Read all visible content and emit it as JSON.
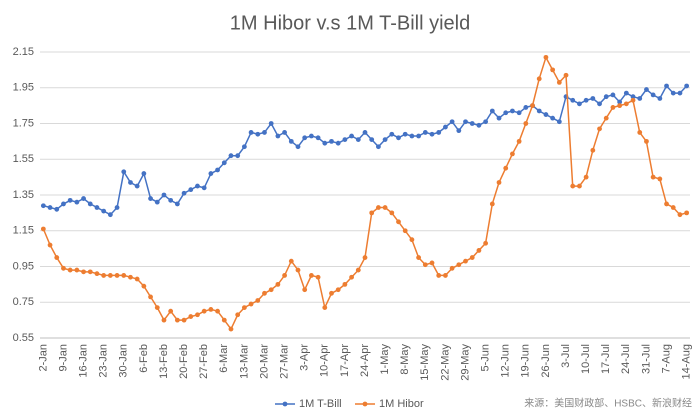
{
  "chart_data": {
    "type": "line",
    "title": "1M Hibor v.s 1M T-Bill yield",
    "source": "来源：美国财政部、HSBC、新浪财经",
    "categories": [
      "2-Jan",
      null,
      null,
      "9-Jan",
      null,
      null,
      "16-Jan",
      null,
      null,
      "23-Jan",
      null,
      null,
      "30-Jan",
      null,
      null,
      "6-Feb",
      null,
      null,
      "13-Feb",
      null,
      null,
      "20-Feb",
      null,
      null,
      "27-Feb",
      null,
      null,
      "6-Mar",
      null,
      null,
      "13-Mar",
      null,
      null,
      "20-Mar",
      null,
      null,
      "27-Mar",
      null,
      null,
      "3-Apr",
      null,
      null,
      "10-Apr",
      null,
      null,
      "17-Apr",
      null,
      null,
      "24-Apr",
      null,
      null,
      "1-May",
      null,
      null,
      "8-May",
      null,
      null,
      "15-May",
      null,
      null,
      "22-May",
      null,
      null,
      "29-May",
      null,
      null,
      "5-Jun",
      null,
      null,
      "12-Jun",
      null,
      null,
      "19-Jun",
      null,
      null,
      "26-Jun",
      null,
      null,
      "3-Jul",
      null,
      null,
      "10-Jul",
      null,
      null,
      "17-Jul",
      null,
      null,
      "24-Jul",
      null,
      null,
      "31-Jul",
      null,
      null,
      "7-Aug",
      null,
      null,
      "14-Aug"
    ],
    "series": [
      {
        "name": "1M T-Bill",
        "color": "#4472c4",
        "values": [
          1.29,
          1.28,
          1.27,
          1.3,
          1.32,
          1.31,
          1.33,
          1.3,
          1.28,
          1.26,
          1.24,
          1.28,
          1.48,
          1.42,
          1.4,
          1.47,
          1.33,
          1.31,
          1.35,
          1.32,
          1.3,
          1.36,
          1.38,
          1.4,
          1.39,
          1.47,
          1.49,
          1.53,
          1.57,
          1.57,
          1.62,
          1.7,
          1.69,
          1.7,
          1.75,
          1.68,
          1.7,
          1.65,
          1.62,
          1.67,
          1.68,
          1.67,
          1.64,
          1.65,
          1.64,
          1.66,
          1.68,
          1.66,
          1.7,
          1.66,
          1.62,
          1.66,
          1.69,
          1.67,
          1.69,
          1.68,
          1.68,
          1.7,
          1.69,
          1.7,
          1.73,
          1.76,
          1.71,
          1.76,
          1.75,
          1.74,
          1.76,
          1.82,
          1.78,
          1.81,
          1.82,
          1.81,
          1.84,
          1.85,
          1.82,
          1.8,
          1.78,
          1.76,
          1.9,
          1.88,
          1.86,
          1.88,
          1.89,
          1.86,
          1.9,
          1.91,
          1.87,
          1.92,
          1.9,
          1.89,
          1.94,
          1.91,
          1.89,
          1.96,
          1.92,
          1.92,
          1.96
        ]
      },
      {
        "name": "1M Hibor",
        "color": "#ed7d31",
        "values": [
          1.16,
          1.07,
          1.0,
          0.94,
          0.93,
          0.93,
          0.92,
          0.92,
          0.91,
          0.9,
          0.9,
          0.9,
          0.9,
          0.89,
          0.88,
          0.84,
          0.78,
          0.72,
          0.65,
          0.7,
          0.65,
          0.65,
          0.67,
          0.68,
          0.7,
          0.71,
          0.7,
          0.65,
          0.6,
          0.68,
          0.72,
          0.74,
          0.76,
          0.8,
          0.82,
          0.85,
          0.9,
          0.98,
          0.93,
          0.82,
          0.9,
          0.89,
          0.72,
          0.8,
          0.82,
          0.85,
          0.89,
          0.93,
          1.0,
          1.25,
          1.28,
          1.28,
          1.25,
          1.2,
          1.15,
          1.1,
          1.0,
          0.96,
          0.97,
          0.9,
          0.9,
          0.94,
          0.96,
          0.98,
          1.0,
          1.04,
          1.08,
          1.3,
          1.42,
          1.5,
          1.58,
          1.65,
          1.75,
          1.85,
          2.0,
          2.12,
          2.05,
          1.98,
          2.02,
          1.4,
          1.4,
          1.45,
          1.6,
          1.72,
          1.78,
          1.84,
          1.85,
          1.86,
          1.88,
          1.7,
          1.65,
          1.45,
          1.44,
          1.3,
          1.28,
          1.24,
          1.25
        ]
      }
    ],
    "ylim": [
      0.55,
      2.15
    ],
    "yticks": [
      0.55,
      0.75,
      0.95,
      1.15,
      1.35,
      1.55,
      1.75,
      1.95,
      2.15
    ],
    "grid": true
  }
}
